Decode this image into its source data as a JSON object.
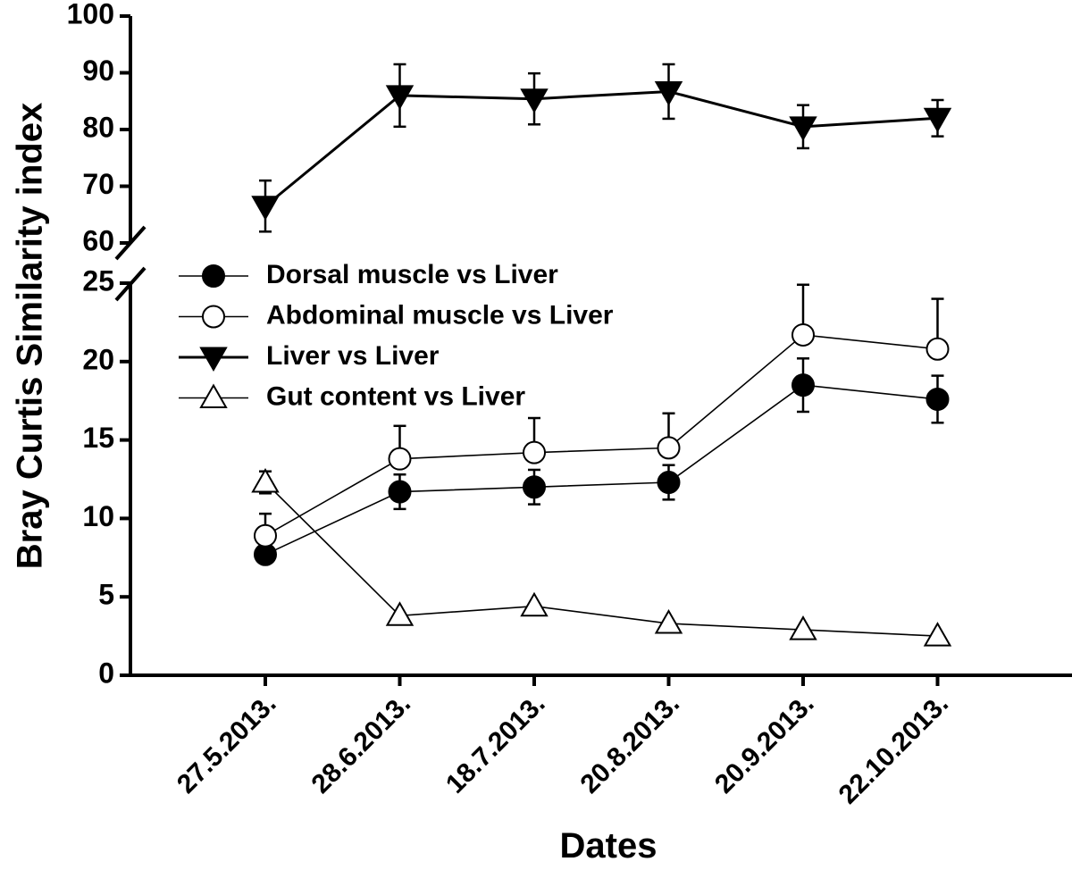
{
  "chart_data": {
    "type": "line",
    "xlabel": "Dates",
    "ylabel": "Bray Curtis Similarity index",
    "categories": [
      "27.5.2013.",
      "28.6.2013.",
      "18.7.2013.",
      "20.8.2013.",
      "20.9.2013.",
      "22.10.2013."
    ],
    "y_axis_break": true,
    "y_lower_range": [
      0,
      25
    ],
    "y_lower_ticks": [
      0,
      5,
      10,
      15,
      20,
      25
    ],
    "y_upper_range": [
      60,
      100
    ],
    "y_upper_ticks": [
      60,
      70,
      80,
      90,
      100
    ],
    "legend_position": "center-left",
    "series": [
      {
        "name": "Dorsal muscle vs Liver",
        "marker": "filled-circle",
        "values": [
          7.7,
          11.7,
          12.0,
          12.3,
          18.5,
          17.6
        ],
        "error": [
          0.5,
          1.1,
          1.1,
          1.1,
          1.7,
          1.5
        ],
        "error_side": "both"
      },
      {
        "name": "Abdominal muscle vs Liver",
        "marker": "open-circle",
        "values": [
          8.9,
          13.8,
          14.2,
          14.5,
          21.7,
          20.8
        ],
        "error": [
          1.4,
          2.1,
          2.2,
          2.2,
          3.2,
          3.2
        ],
        "error_side": "up"
      },
      {
        "name": "Liver vs Liver",
        "marker": "filled-triangle-down",
        "values": [
          66.5,
          86.0,
          85.4,
          86.7,
          80.5,
          82.0
        ],
        "error": [
          4.5,
          5.5,
          4.5,
          4.8,
          3.8,
          3.2
        ],
        "error_side": "both"
      },
      {
        "name": "Gut content vs Liver",
        "marker": "open-triangle-up",
        "values": [
          12.3,
          3.8,
          4.4,
          3.3,
          2.9,
          2.5
        ],
        "error": [
          0.7,
          0,
          0,
          0,
          0,
          0
        ],
        "error_side": "both"
      }
    ]
  }
}
